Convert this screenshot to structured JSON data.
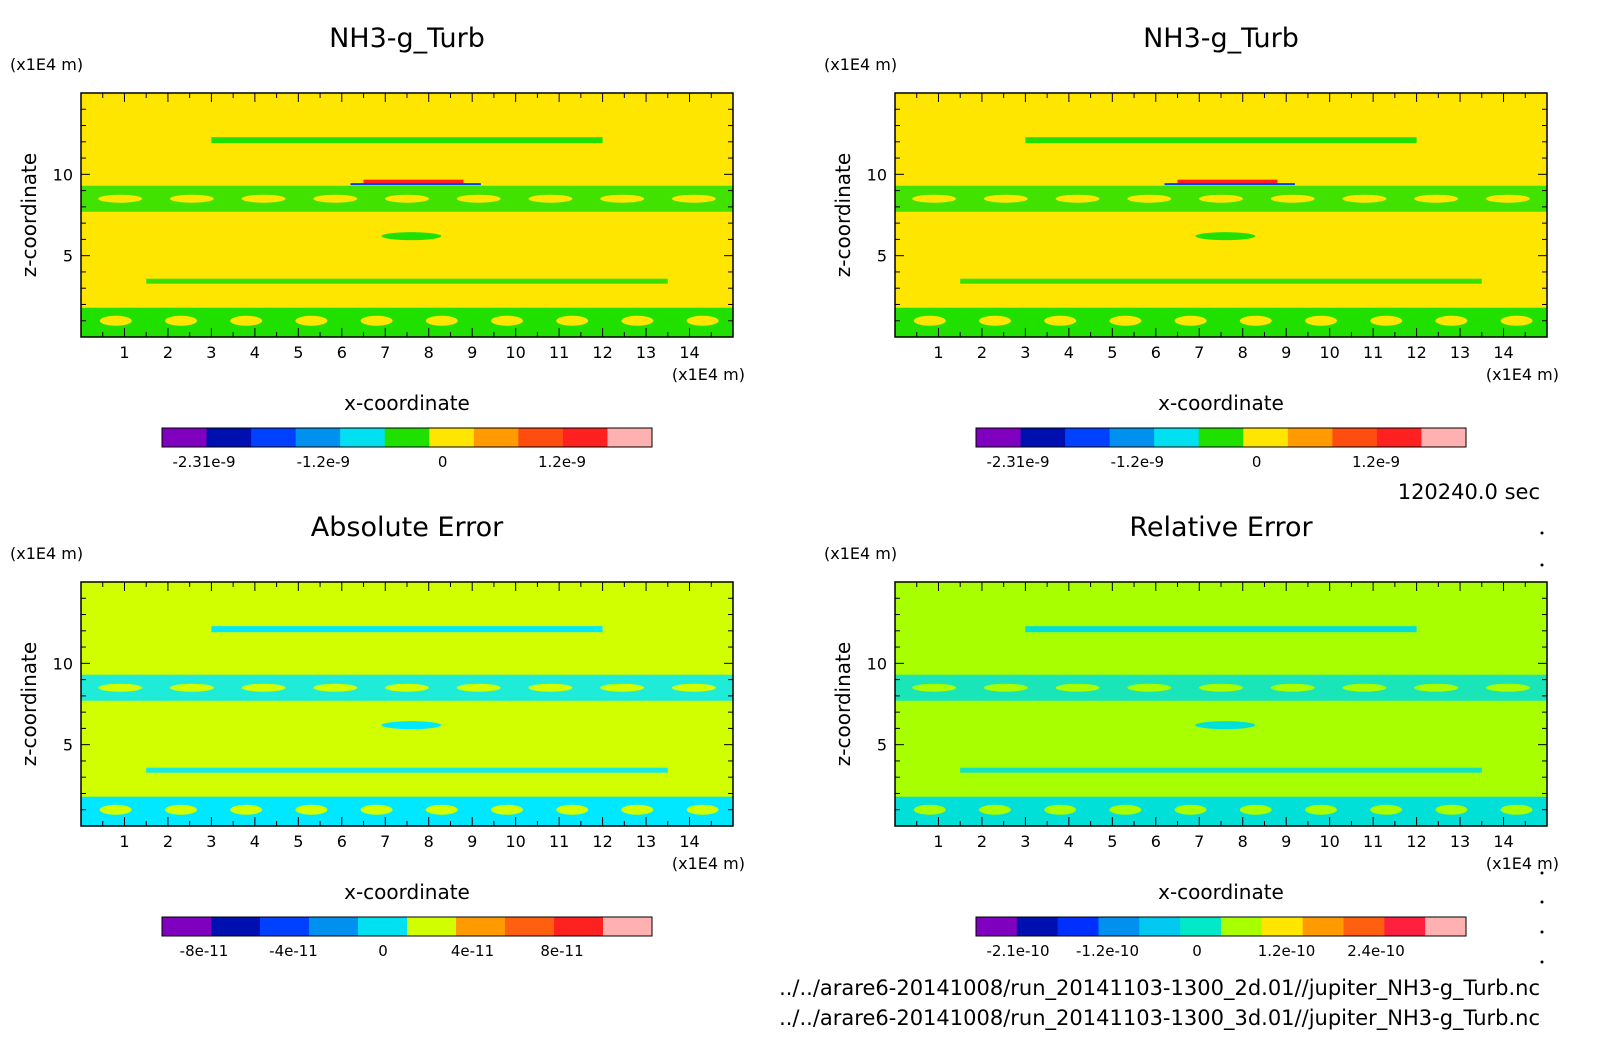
{
  "figure": {
    "time_label": "120240.0 sec",
    "files": [
      "../../arare6-20141008/run_20141103-1300_2d.01//jupiter_NH3-g_Turb.nc",
      "../../arare6-20141008/run_20141103-1300_3d.01//jupiter_NH3-g_Turb.nc"
    ]
  },
  "chart_data": [
    {
      "type": "heatmap",
      "title": "NH3-g_Turb",
      "xlabel": "x-coordinate",
      "ylabel": "z-coordinate",
      "x_unit": "(x1E4 m)",
      "y_unit": "(x1E4 m)",
      "xlim": [
        0,
        15
      ],
      "ylim": [
        0,
        15
      ],
      "x_ticks": [
        "1",
        "2",
        "3",
        "4",
        "5",
        "6",
        "7",
        "8",
        "9",
        "10",
        "11",
        "12",
        "13",
        "14"
      ],
      "y_ticks": [
        "5",
        "10"
      ],
      "background_color": "#ffe600",
      "colorbar": {
        "colors": [
          "#7f00bf",
          "#0010b0",
          "#0040ff",
          "#0090f0",
          "#00e0f0",
          "#20e000",
          "#ffe600",
          "#ff9a00",
          "#ff4d10",
          "#ff2020",
          "#ffb0b0"
        ],
        "tick_labels": [
          "-2.31e-9",
          "-1.2e-9",
          "0",
          "1.2e-9"
        ]
      }
    },
    {
      "type": "heatmap",
      "title": "NH3-g_Turb",
      "xlabel": "x-coordinate",
      "ylabel": "z-coordinate",
      "x_unit": "(x1E4 m)",
      "y_unit": "(x1E4 m)",
      "xlim": [
        0,
        15
      ],
      "ylim": [
        0,
        15
      ],
      "x_ticks": [
        "1",
        "2",
        "3",
        "4",
        "5",
        "6",
        "7",
        "8",
        "9",
        "10",
        "11",
        "12",
        "13",
        "14"
      ],
      "y_ticks": [
        "5",
        "10"
      ],
      "background_color": "#ffe600",
      "colorbar": {
        "colors": [
          "#7f00bf",
          "#0010b0",
          "#0040ff",
          "#0090f0",
          "#00e0f0",
          "#20e000",
          "#ffe600",
          "#ff9a00",
          "#ff4d10",
          "#ff2020",
          "#ffb0b0"
        ],
        "tick_labels": [
          "-2.31e-9",
          "-1.2e-9",
          "0",
          "1.2e-9"
        ]
      }
    },
    {
      "type": "heatmap",
      "title": "Absolute Error",
      "xlabel": "x-coordinate",
      "ylabel": "z-coordinate",
      "x_unit": "(x1E4 m)",
      "y_unit": "(x1E4 m)",
      "xlim": [
        0,
        15
      ],
      "ylim": [
        0,
        15
      ],
      "x_ticks": [
        "1",
        "2",
        "3",
        "4",
        "5",
        "6",
        "7",
        "8",
        "9",
        "10",
        "11",
        "12",
        "13",
        "14"
      ],
      "y_ticks": [
        "5",
        "10"
      ],
      "background_color": "#d2ff00",
      "colorbar": {
        "colors": [
          "#7f00bf",
          "#0010b0",
          "#0040ff",
          "#0090f0",
          "#00e0f0",
          "#d2ff00",
          "#ff9a00",
          "#ff6010",
          "#ff2020",
          "#ffb0b0"
        ],
        "tick_labels": [
          "-8e-11",
          "-4e-11",
          "0",
          "4e-11",
          "8e-11"
        ]
      }
    },
    {
      "type": "heatmap",
      "title": "Relative Error",
      "xlabel": "x-coordinate",
      "ylabel": "z-coordinate",
      "x_unit": "(x1E4 m)",
      "y_unit": "(x1E4 m)",
      "xlim": [
        0,
        15
      ],
      "ylim": [
        0,
        15
      ],
      "x_ticks": [
        "1",
        "2",
        "3",
        "4",
        "5",
        "6",
        "7",
        "8",
        "9",
        "10",
        "11",
        "12",
        "13",
        "14"
      ],
      "y_ticks": [
        "5",
        "10"
      ],
      "background_color": "#a8ff00",
      "colorbar": {
        "colors": [
          "#7f00bf",
          "#0010b0",
          "#0030ff",
          "#0090f0",
          "#00c8f0",
          "#00e8c8",
          "#a8ff00",
          "#ffe600",
          "#ff9a00",
          "#ff6010",
          "#ff2040",
          "#ffb0b0"
        ],
        "tick_labels": [
          "-2.1e-10",
          "-1.2e-10",
          "0",
          "1.2e-10",
          "2.4e-10"
        ]
      }
    }
  ]
}
